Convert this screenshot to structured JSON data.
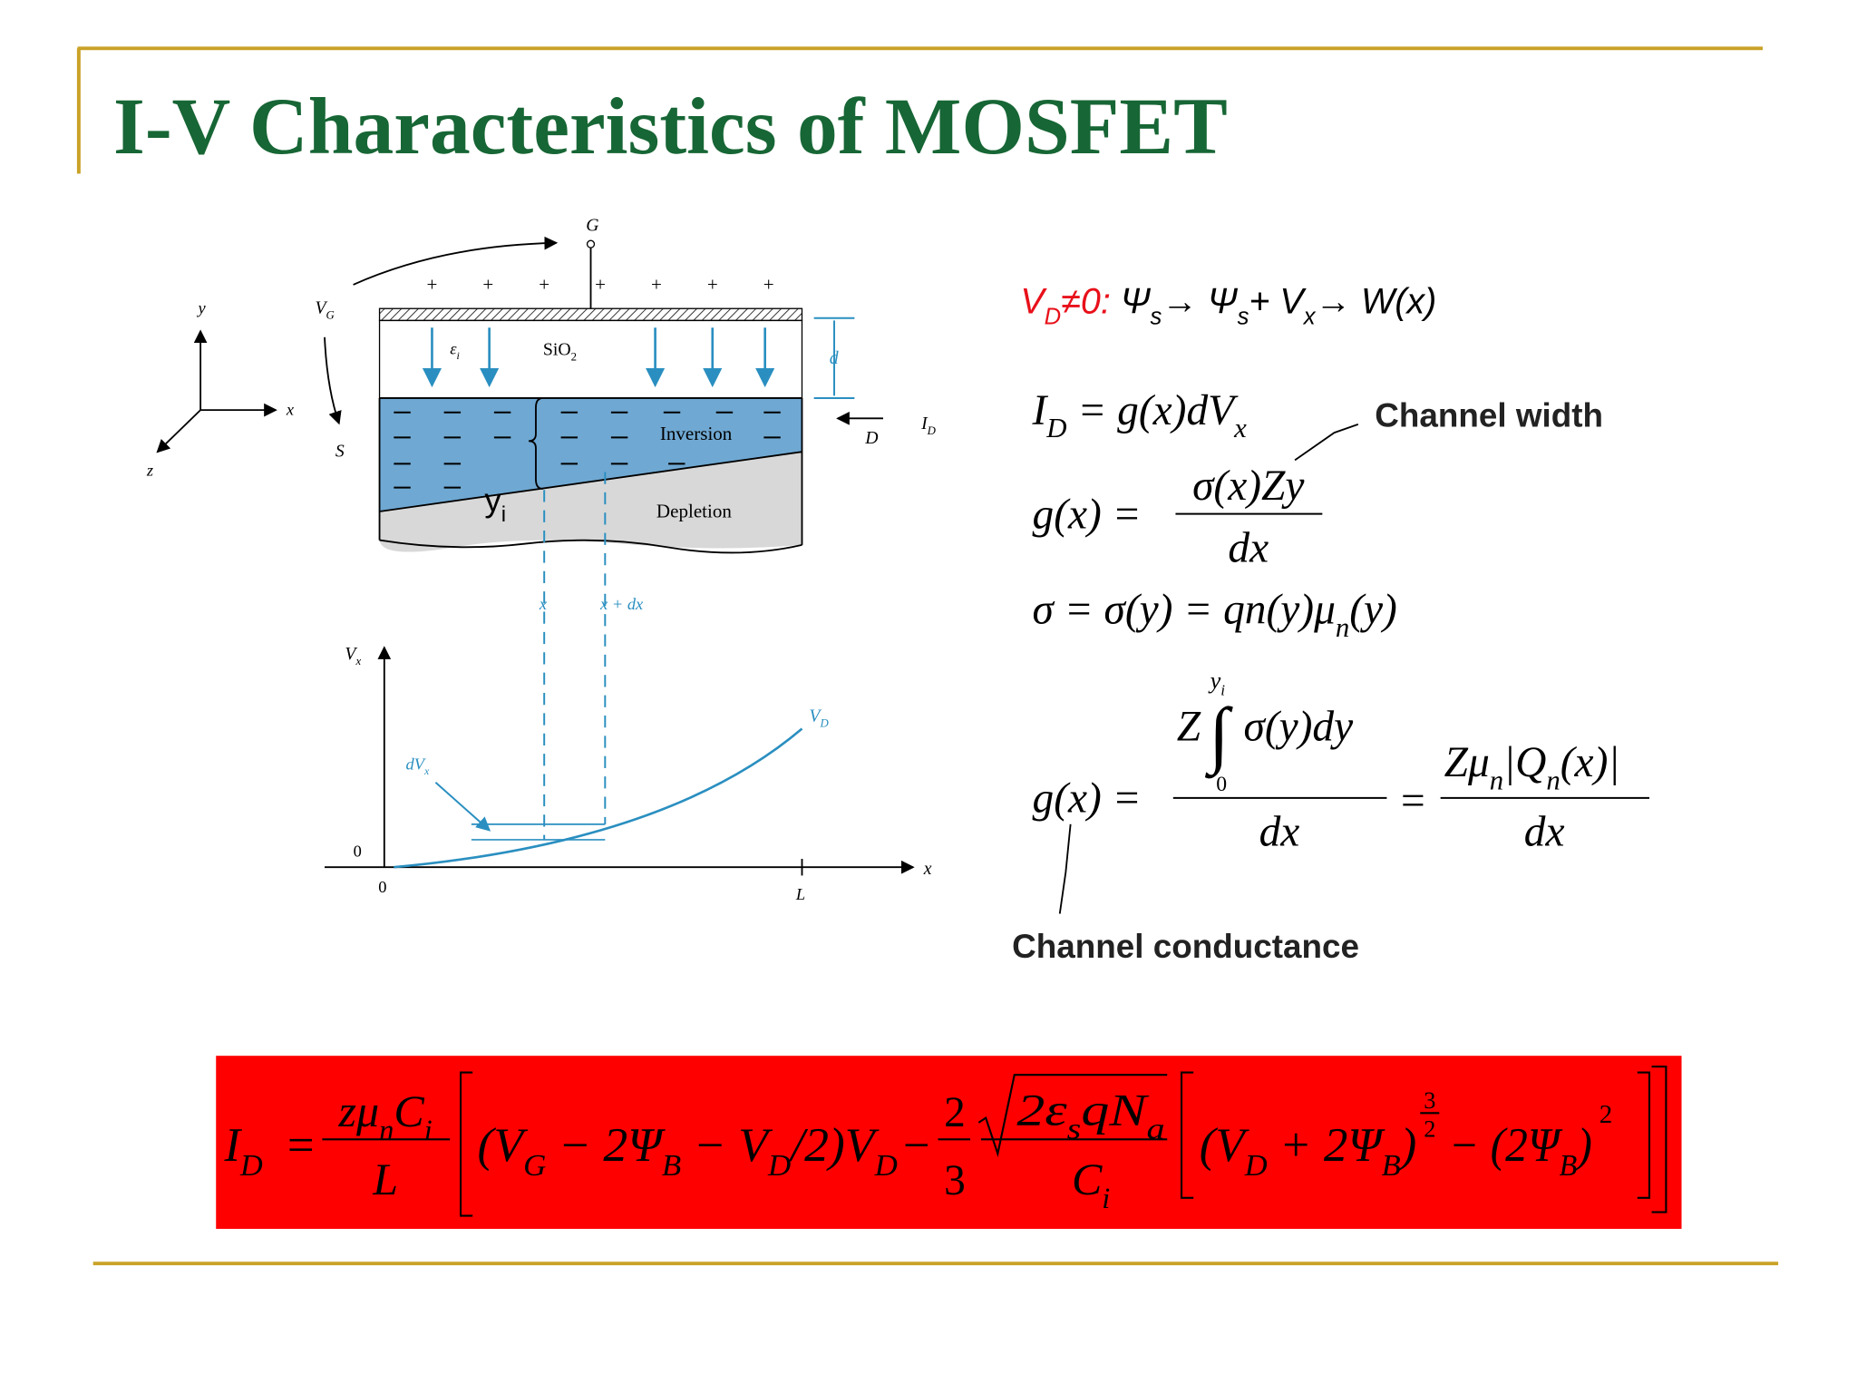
{
  "slide": {
    "title": "I-V Characteristics of MOSFET",
    "diagram": {
      "gate": "G",
      "gate_voltage": [
        "V",
        "G"
      ],
      "charges": [
        "+",
        "+",
        "+",
        "+",
        "+",
        "+",
        "+"
      ],
      "axes": {
        "y": "y",
        "x": "x",
        "z": "z"
      },
      "source": "S",
      "drain": "D",
      "drain_current": [
        "I",
        "D"
      ],
      "permittivity": [
        "ε",
        "i"
      ],
      "oxide": [
        "SiO",
        "2"
      ],
      "thickness": "d",
      "inversion": "Inversion",
      "depletion": "Depletion",
      "inversion_depth": [
        "y",
        "i"
      ],
      "position": "x",
      "position_dx": "x + dx",
      "graph": {
        "y_label": [
          "V",
          "x"
        ],
        "curve_label": [
          "V",
          "D"
        ],
        "increment": [
          "dV",
          "x"
        ],
        "y_origin": "0",
        "x_origin": "0",
        "x_end": "L",
        "x_label": "x"
      }
    },
    "condition": [
      "V",
      "D",
      "≠0:",
      " Ψ",
      "s",
      "→ Ψ",
      "s",
      "+ V",
      "x",
      "→ W(x)"
    ],
    "eq1": [
      "I",
      "D",
      " = g(x)dV",
      "x"
    ],
    "eq2": {
      "lhs": "g(x) =",
      "numerator": "σ(x)Zy",
      "denominator": "dx"
    },
    "eq3": [
      "σ = σ(y) = qn(y)μ",
      "n",
      "(y)"
    ],
    "eq4": {
      "lhs": "g(x) =",
      "factor": "Z",
      "integral": "∫",
      "upper": [
        "y",
        "i"
      ],
      "lower": "0",
      "integrand": "σ(y)dy",
      "denominator": "dx",
      "equals": "=",
      "numerator2": [
        "Zμ",
        "n",
        "|Q",
        "n",
        "(x)|"
      ],
      "denominator2": "dx"
    },
    "annotations": {
      "channel_width": "Channel width",
      "channel_conductance": "Channel conductance"
    },
    "current": {
      "lhs": [
        "I",
        "D"
      ],
      "equals": "=",
      "prefactor_numerator": [
        "zμ",
        "n",
        "C",
        "i"
      ],
      "prefactor_denominator": "L",
      "term1": [
        "(V",
        "G",
        " − 2Ψ",
        "B",
        " − V",
        "D",
        "/",
        "2",
        ")V",
        "D"
      ],
      "minus": "−",
      "coeff_numerator": "2",
      "coeff_denominator": "3",
      "radicand": [
        "2ε",
        "s",
        "qN",
        "a"
      ],
      "root_denominator": [
        "C",
        "i"
      ],
      "term2": [
        "(V",
        "D",
        " + 2Ψ",
        "B",
        ")"
      ],
      "exponent_numerator": "3",
      "exponent_denominator": "2",
      "term3": [
        "− (2Ψ",
        "B",
        ")"
      ],
      "square": "2"
    }
  }
}
